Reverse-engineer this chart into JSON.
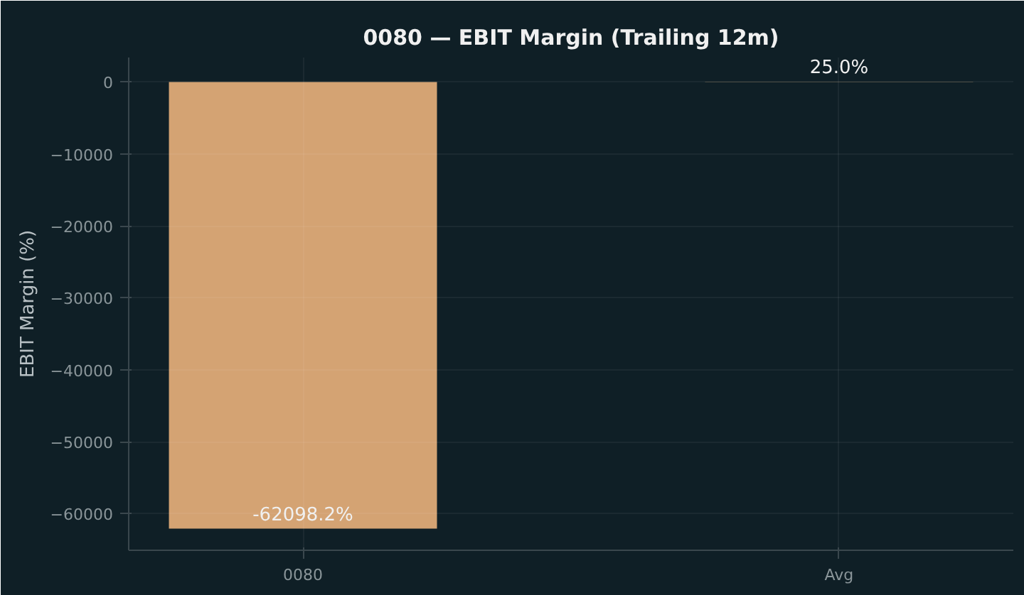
{
  "chart_data": {
    "type": "bar",
    "title": "0080 — EBIT Margin (Trailing 12m)",
    "ylabel": "EBIT Margin (%)",
    "categories": [
      "0080",
      "Avg"
    ],
    "values": [
      -62098.2,
      25.0
    ],
    "value_labels": [
      "-62098.2%",
      "25.0%"
    ],
    "color": "#d4a373",
    "ylim": [
      -65100,
      3400
    ],
    "yticks": [
      0,
      -10000,
      -20000,
      -30000,
      -40000,
      -50000,
      -60000
    ],
    "grid": true
  }
}
